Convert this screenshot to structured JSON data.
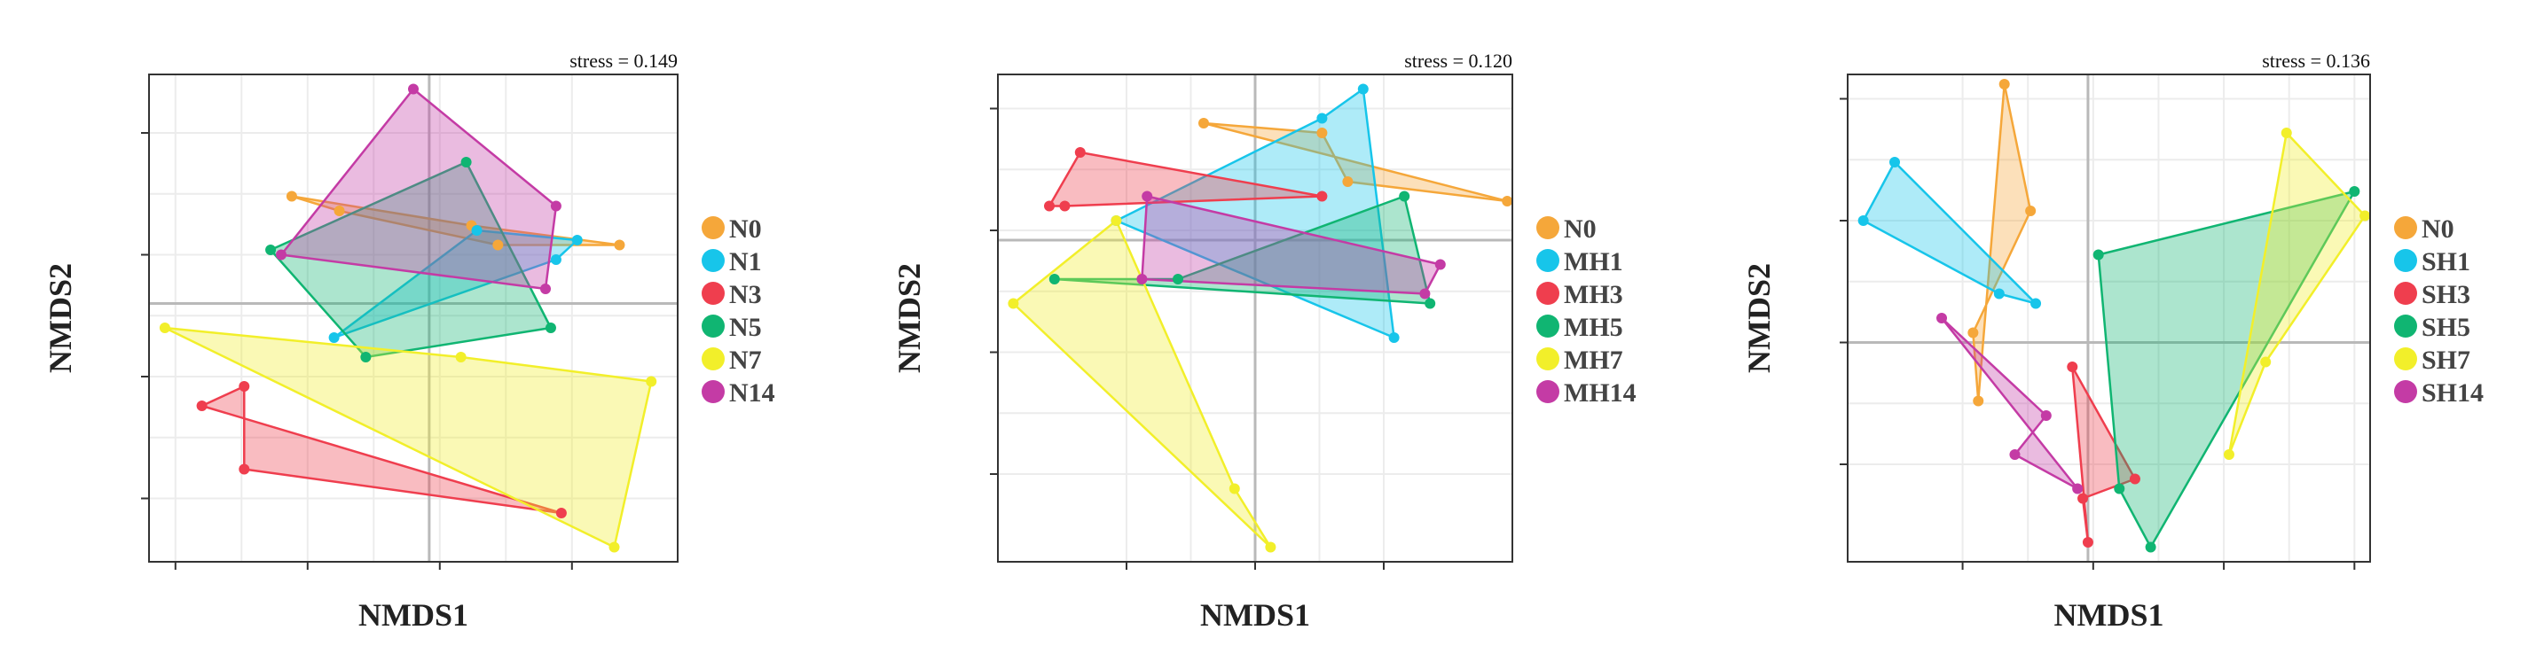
{
  "colors": {
    "orange": "#F5A73A",
    "cyan": "#17C5EA",
    "red": "#EF3E4E",
    "green": "#10B572",
    "yellow": "#F2EF2A",
    "magenta": "#C43BA5"
  },
  "chart_data": [
    {
      "type": "scatter",
      "xlabel": "NMDS1",
      "ylabel": "NMDS2",
      "stress_label": "stress = 0.149",
      "xlim": [
        0,
        100
      ],
      "ylim": [
        0,
        100
      ],
      "x_ticks": [
        5,
        30,
        55,
        80
      ],
      "y_ticks": [
        13,
        38,
        63,
        88
      ],
      "zero_x": 53,
      "zero_y": 53,
      "series": [
        {
          "name": "N0",
          "color_key": "orange",
          "points": [
            [
              27,
              75
            ],
            [
              36,
              72
            ],
            [
              66,
              65
            ],
            [
              89,
              65
            ],
            [
              61,
              69
            ]
          ]
        },
        {
          "name": "N1",
          "color_key": "cyan",
          "points": [
            [
              35,
              46
            ],
            [
              62,
              68
            ],
            [
              81,
              66
            ],
            [
              77,
              62
            ]
          ]
        },
        {
          "name": "N3",
          "color_key": "red",
          "points": [
            [
              10,
              32
            ],
            [
              18,
              36
            ],
            [
              18,
              19
            ],
            [
              78,
              10
            ]
          ]
        },
        {
          "name": "N5",
          "color_key": "green",
          "points": [
            [
              23,
              64
            ],
            [
              60,
              82
            ],
            [
              76,
              48
            ],
            [
              41,
              42
            ]
          ]
        },
        {
          "name": "N7",
          "color_key": "yellow",
          "points": [
            [
              3,
              48
            ],
            [
              59,
              42
            ],
            [
              95,
              37
            ],
            [
              88,
              3
            ]
          ]
        },
        {
          "name": "N14",
          "color_key": "magenta",
          "points": [
            [
              25,
              63
            ],
            [
              50,
              97
            ],
            [
              77,
              73
            ],
            [
              75,
              56
            ]
          ]
        }
      ]
    },
    {
      "type": "scatter",
      "xlabel": "NMDS1",
      "ylabel": "NMDS2",
      "stress_label": "stress = 0.120",
      "xlim": [
        0,
        100
      ],
      "ylim": [
        0,
        100
      ],
      "x_ticks": [
        25,
        50,
        75
      ],
      "y_ticks": [
        18,
        43,
        68,
        93
      ],
      "zero_x": 50,
      "zero_y": 66,
      "series": [
        {
          "name": "N0",
          "color_key": "orange",
          "points": [
            [
              40,
              90
            ],
            [
              63,
              88
            ],
            [
              68,
              78
            ],
            [
              99,
              74
            ]
          ]
        },
        {
          "name": "MH1",
          "color_key": "cyan",
          "points": [
            [
              23,
              70
            ],
            [
              63,
              91
            ],
            [
              71,
              97
            ],
            [
              77,
              46
            ]
          ]
        },
        {
          "name": "MH3",
          "color_key": "red",
          "points": [
            [
              16,
              84
            ],
            [
              10,
              73
            ],
            [
              13,
              73
            ],
            [
              63,
              75
            ]
          ]
        },
        {
          "name": "MH5",
          "color_key": "green",
          "points": [
            [
              11,
              58
            ],
            [
              35,
              58
            ],
            [
              79,
              75
            ],
            [
              84,
              53
            ]
          ]
        },
        {
          "name": "MH7",
          "color_key": "yellow",
          "points": [
            [
              3,
              53
            ],
            [
              23,
              70
            ],
            [
              46,
              15
            ],
            [
              53,
              3
            ]
          ]
        },
        {
          "name": "MH14",
          "color_key": "magenta",
          "points": [
            [
              29,
              75
            ],
            [
              28,
              58
            ],
            [
              83,
              55
            ],
            [
              86,
              61
            ]
          ]
        }
      ]
    },
    {
      "type": "scatter",
      "xlabel": "NMDS1",
      "ylabel": "NMDS2",
      "stress_label": "stress = 0.136",
      "xlim": [
        0,
        100
      ],
      "ylim": [
        0,
        100
      ],
      "x_ticks": [
        22,
        47,
        72,
        97
      ],
      "y_ticks": [
        20,
        45,
        70,
        95
      ],
      "zero_x": 46,
      "zero_y": 45,
      "series": [
        {
          "name": "N0",
          "color_key": "orange",
          "points": [
            [
              30,
              98
            ],
            [
              35,
              72
            ],
            [
              24,
              47
            ],
            [
              25,
              33
            ]
          ]
        },
        {
          "name": "SH1",
          "color_key": "cyan",
          "points": [
            [
              9,
              82
            ],
            [
              3,
              70
            ],
            [
              29,
              55
            ],
            [
              36,
              53
            ]
          ]
        },
        {
          "name": "SH3",
          "color_key": "red",
          "points": [
            [
              43,
              40
            ],
            [
              55,
              17
            ],
            [
              45,
              13
            ],
            [
              46,
              4
            ]
          ]
        },
        {
          "name": "SH5",
          "color_key": "green",
          "points": [
            [
              48,
              63
            ],
            [
              97,
              76
            ],
            [
              58,
              3
            ],
            [
              52,
              15
            ]
          ]
        },
        {
          "name": "SH7",
          "color_key": "yellow",
          "points": [
            [
              84,
              88
            ],
            [
              99,
              71
            ],
            [
              80,
              41
            ],
            [
              73,
              22
            ]
          ]
        },
        {
          "name": "SH14",
          "color_key": "magenta",
          "points": [
            [
              18,
              50
            ],
            [
              38,
              30
            ],
            [
              32,
              22
            ],
            [
              44,
              15
            ]
          ]
        }
      ]
    }
  ]
}
